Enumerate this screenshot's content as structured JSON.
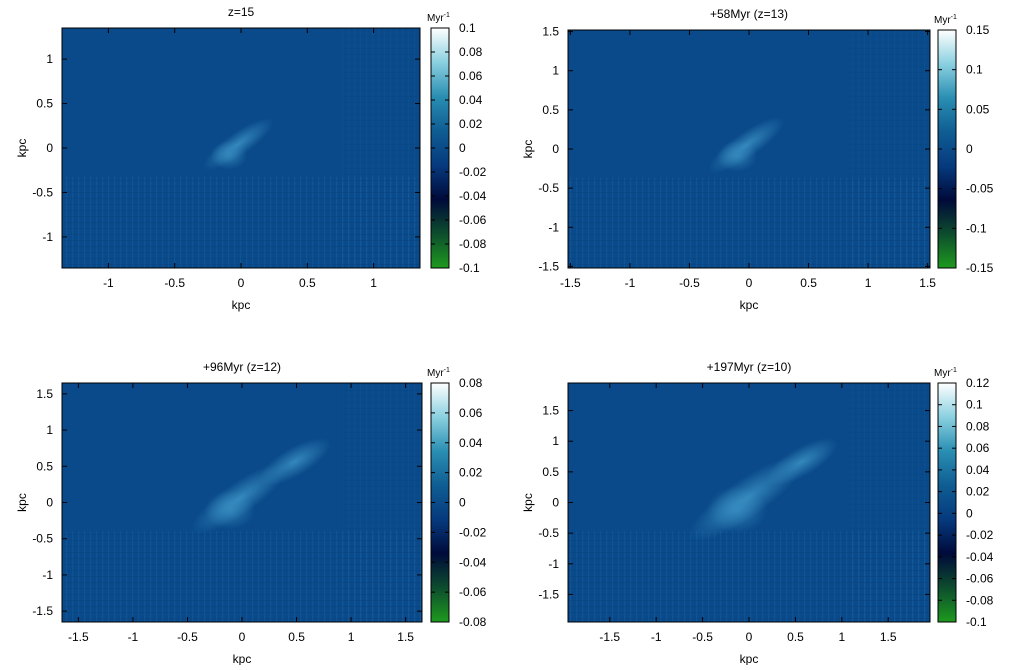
{
  "colormap": {
    "stops": [
      "#1e9a1e",
      "#0d4d2e",
      "#000a3a",
      "#063a7e",
      "#0f5d93",
      "#2a8eb2",
      "#8ad0e0",
      "#ffffff"
    ],
    "field": "#0a4a8a"
  },
  "chart_data": [
    {
      "type": "heatmap",
      "title": "z=15",
      "xlabel": "kpc",
      "ylabel": "kpc",
      "xlim": [
        -1.35,
        1.35
      ],
      "ylim": [
        -1.35,
        1.35
      ],
      "xticks": [
        {
          "v": -1,
          "label": "-1"
        },
        {
          "v": -0.5,
          "label": "-0.5"
        },
        {
          "v": 0,
          "label": "0"
        },
        {
          "v": 0.5,
          "label": "0.5"
        },
        {
          "v": 1,
          "label": "1"
        }
      ],
      "yticks": [
        {
          "v": -1,
          "label": "-1"
        },
        {
          "v": -0.5,
          "label": "-0.5"
        },
        {
          "v": 0,
          "label": "0"
        },
        {
          "v": 0.5,
          "label": "0.5"
        },
        {
          "v": 1,
          "label": "1"
        }
      ],
      "colorbar": {
        "unit": "Myr",
        "unit_exp": "-1",
        "range": [
          -0.1,
          0.1
        ],
        "ticks": [
          {
            "v": 0.1,
            "label": "0.1"
          },
          {
            "v": 0.08,
            "label": "0.08"
          },
          {
            "v": 0.06,
            "label": "0.06"
          },
          {
            "v": 0.04,
            "label": "0.04"
          },
          {
            "v": 0.02,
            "label": "0.02"
          },
          {
            "v": 0,
            "label": "0"
          },
          {
            "v": -0.02,
            "label": "-0.02"
          },
          {
            "v": -0.04,
            "label": "-0.04"
          },
          {
            "v": -0.06,
            "label": "-0.06"
          },
          {
            "v": -0.08,
            "label": "-0.08"
          },
          {
            "v": -0.1,
            "label": "-0.1"
          }
        ]
      }
    },
    {
      "type": "heatmap",
      "title": "+58Myr (z=13)",
      "xlabel": "kpc",
      "ylabel": "kpc",
      "xlim": [
        -1.52,
        1.52
      ],
      "ylim": [
        -1.52,
        1.52
      ],
      "xticks": [
        {
          "v": -1.5,
          "label": "-1.5"
        },
        {
          "v": -1,
          "label": "-1"
        },
        {
          "v": -0.5,
          "label": "-0.5"
        },
        {
          "v": 0,
          "label": "0"
        },
        {
          "v": 0.5,
          "label": "0.5"
        },
        {
          "v": 1,
          "label": "1"
        },
        {
          "v": 1.5,
          "label": "1.5"
        }
      ],
      "yticks": [
        {
          "v": -1.5,
          "label": "-1.5"
        },
        {
          "v": -1,
          "label": "-1"
        },
        {
          "v": -0.5,
          "label": "-0.5"
        },
        {
          "v": 0,
          "label": "0"
        },
        {
          "v": 0.5,
          "label": "0.5"
        },
        {
          "v": 1,
          "label": "1"
        },
        {
          "v": 1.5,
          "label": "1.5"
        }
      ],
      "colorbar": {
        "unit": "Myr",
        "unit_exp": "-1",
        "range": [
          -0.15,
          0.15
        ],
        "ticks": [
          {
            "v": 0.15,
            "label": "0.15"
          },
          {
            "v": 0.1,
            "label": "0.1"
          },
          {
            "v": 0.05,
            "label": "0.05"
          },
          {
            "v": 0,
            "label": "0"
          },
          {
            "v": -0.05,
            "label": "-0.05"
          },
          {
            "v": -0.1,
            "label": "-0.1"
          },
          {
            "v": -0.15,
            "label": "-0.15"
          }
        ]
      }
    },
    {
      "type": "heatmap",
      "title": "+96Myr (z=12)",
      "xlabel": "kpc",
      "ylabel": "kpc",
      "xlim": [
        -1.65,
        1.65
      ],
      "ylim": [
        -1.65,
        1.65
      ],
      "xticks": [
        {
          "v": -1.5,
          "label": "-1.5"
        },
        {
          "v": -1,
          "label": "-1"
        },
        {
          "v": -0.5,
          "label": "-0.5"
        },
        {
          "v": 0,
          "label": "0"
        },
        {
          "v": 0.5,
          "label": "0.5"
        },
        {
          "v": 1,
          "label": "1"
        },
        {
          "v": 1.5,
          "label": "1.5"
        }
      ],
      "yticks": [
        {
          "v": -1.5,
          "label": "-1.5"
        },
        {
          "v": -1,
          "label": "-1"
        },
        {
          "v": -0.5,
          "label": "-0.5"
        },
        {
          "v": 0,
          "label": "0"
        },
        {
          "v": 0.5,
          "label": "0.5"
        },
        {
          "v": 1,
          "label": "1"
        },
        {
          "v": 1.5,
          "label": "1.5"
        }
      ],
      "colorbar": {
        "unit": "Myr",
        "unit_exp": "-1",
        "range": [
          -0.08,
          0.08
        ],
        "ticks": [
          {
            "v": 0.08,
            "label": "0.08"
          },
          {
            "v": 0.06,
            "label": "0.06"
          },
          {
            "v": 0.04,
            "label": "0.04"
          },
          {
            "v": 0.02,
            "label": "0.02"
          },
          {
            "v": 0,
            "label": "0"
          },
          {
            "v": -0.02,
            "label": "-0.02"
          },
          {
            "v": -0.04,
            "label": "-0.04"
          },
          {
            "v": -0.06,
            "label": "-0.06"
          },
          {
            "v": -0.08,
            "label": "-0.08"
          }
        ]
      }
    },
    {
      "type": "heatmap",
      "title": "+197Myr (z=10)",
      "xlabel": "kpc",
      "ylabel": "kpc",
      "xlim": [
        -1.95,
        1.95
      ],
      "ylim": [
        -1.95,
        1.95
      ],
      "xticks": [
        {
          "v": -1.5,
          "label": "-1.5"
        },
        {
          "v": -1,
          "label": "-1"
        },
        {
          "v": -0.5,
          "label": "-0.5"
        },
        {
          "v": 0,
          "label": "0"
        },
        {
          "v": 0.5,
          "label": "0.5"
        },
        {
          "v": 1,
          "label": "1"
        },
        {
          "v": 1.5,
          "label": "1.5"
        }
      ],
      "yticks": [
        {
          "v": -1.5,
          "label": "-1.5"
        },
        {
          "v": -1,
          "label": "-1"
        },
        {
          "v": -0.5,
          "label": "-0.5"
        },
        {
          "v": 0,
          "label": "0"
        },
        {
          "v": 0.5,
          "label": "0.5"
        },
        {
          "v": 1,
          "label": "1"
        },
        {
          "v": 1.5,
          "label": "1.5"
        }
      ],
      "colorbar": {
        "unit": "Myr",
        "unit_exp": "-1",
        "range": [
          -0.1,
          0.12
        ],
        "ticks": [
          {
            "v": 0.12,
            "label": "0.12"
          },
          {
            "v": 0.1,
            "label": "0.1"
          },
          {
            "v": 0.08,
            "label": "0.08"
          },
          {
            "v": 0.06,
            "label": "0.06"
          },
          {
            "v": 0.04,
            "label": "0.04"
          },
          {
            "v": 0.02,
            "label": "0.02"
          },
          {
            "v": 0,
            "label": "0"
          },
          {
            "v": -0.02,
            "label": "-0.02"
          },
          {
            "v": -0.04,
            "label": "-0.04"
          },
          {
            "v": -0.06,
            "label": "-0.06"
          },
          {
            "v": -0.08,
            "label": "-0.08"
          },
          {
            "v": -0.1,
            "label": "-0.1"
          }
        ]
      }
    }
  ]
}
